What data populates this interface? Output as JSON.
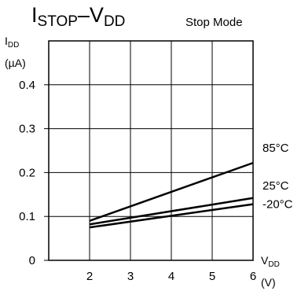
{
  "chart_data": {
    "type": "line",
    "title_main": "I",
    "title_sub1": "STOP",
    "title_dash": "–V",
    "title_sub2": "DD",
    "subtitle": "Stop Mode",
    "ylabel_main": "I",
    "ylabel_sub": "DD",
    "ylabel_unit": "(µA)",
    "xlabel_main": "V",
    "xlabel_sub": "DD",
    "xlabel_unit": "(V)",
    "xlim": [
      1,
      6
    ],
    "ylim": [
      0,
      0.5
    ],
    "xticks": [
      2,
      3,
      4,
      5,
      6
    ],
    "xtick_labels": [
      "2",
      "3",
      "4",
      "5",
      "6"
    ],
    "yticks": [
      0,
      0.1,
      0.2,
      0.3,
      0.4
    ],
    "ytick_labels": [
      "0",
      "0.1",
      "0.2",
      "0.3",
      "0.4"
    ],
    "grid": true,
    "series": [
      {
        "name": "85°C",
        "x": [
          2,
          6
        ],
        "y": [
          0.09,
          0.222
        ]
      },
      {
        "name": "25°C",
        "x": [
          2,
          6
        ],
        "y": [
          0.082,
          0.142
        ]
      },
      {
        "name": "-20°C",
        "x": [
          2,
          6
        ],
        "y": [
          0.075,
          0.128
        ]
      }
    ]
  }
}
